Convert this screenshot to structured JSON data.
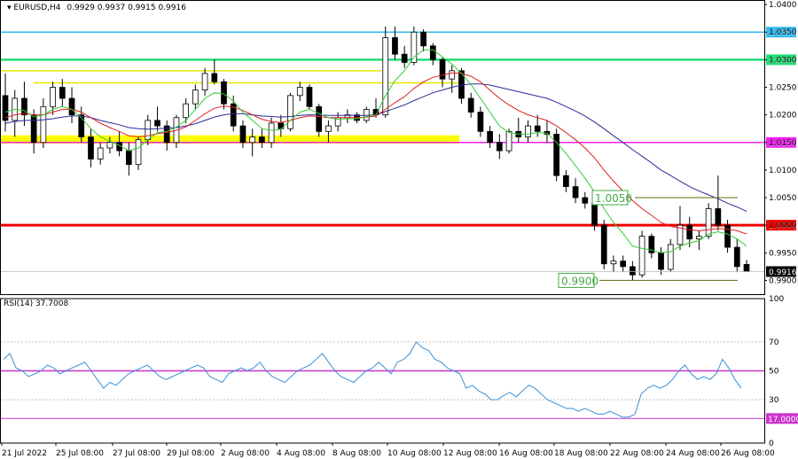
{
  "header": {
    "title": "EURUSD,H4",
    "ohlc": "0.9929 0.9937 0.9915 0.9916",
    "rsi_label": "RSI(14) 37.7008"
  },
  "colors": {
    "bull": "#ffffff",
    "bear": "#000000",
    "ma_fast": "#33cc33",
    "ma_mid": "#e02020",
    "ma_slow": "#2b2b9a",
    "rsi_line": "#3a8fd6",
    "rsi_level50": "#cc33cc",
    "rsi_level17": "#cc33cc",
    "sep": "#000000"
  },
  "chart_data": [
    {
      "type": "candlestick",
      "symbol": "EURUSD",
      "timeframe": "H4",
      "ylim": [
        0.9875,
        1.0405
      ],
      "y_ticks": [
        "1.0400",
        "1.0350",
        "1.0300",
        "1.0250",
        "1.0200",
        "1.0150",
        "1.0100",
        "1.0050",
        "1.0000",
        "0.9950",
        "0.9900"
      ],
      "x_ticks": [
        "21 Jul 2022",
        "25 Jul 08:00",
        "27 Jul 08:00",
        "29 Jul 08:00",
        "2 Aug 08:00",
        "4 Aug 08:00",
        "8 Aug 08:00",
        "10 Aug 08:00",
        "12 Aug 08:00",
        "16 Aug 08:00",
        "18 Aug 08:00",
        "22 Aug 08:00",
        "24 Aug 08:00",
        "26 Aug 08:00"
      ],
      "current_price": "0.9916",
      "levels": [
        {
          "value": 1.035,
          "label": "1.0350",
          "color": "#33bbee",
          "width": 1.5
        },
        {
          "value": 1.03,
          "label": "1.0300",
          "color": "#22dd77",
          "width": 2.5
        },
        {
          "value": 1.015,
          "label": "1.0150",
          "color": "#ee22ee",
          "width": 1.5
        },
        {
          "value": 1.0,
          "label": "1.0000",
          "color": "#ee0000",
          "width": 3
        }
      ],
      "annotations": [
        {
          "text": "1.0050",
          "value": 1.005,
          "color": "#44aa44"
        },
        {
          "text": "0.9900",
          "value": 0.99,
          "color": "#44aa44"
        }
      ],
      "candles": [
        [
          1.0235,
          1.0275,
          1.017,
          1.019
        ],
        [
          1.019,
          1.0245,
          1.016,
          1.023
        ],
        [
          1.023,
          1.026,
          1.018,
          1.02
        ],
        [
          1.02,
          1.021,
          1.013,
          1.015
        ],
        [
          1.015,
          1.023,
          1.014,
          1.0215
        ],
        [
          1.0215,
          1.026,
          1.02,
          1.025
        ],
        [
          1.025,
          1.0265,
          1.0215,
          1.023
        ],
        [
          1.023,
          1.025,
          1.0185,
          1.02
        ],
        [
          1.02,
          1.0215,
          1.015,
          1.016
        ],
        [
          1.016,
          1.0175,
          1.0105,
          1.012
        ],
        [
          1.012,
          1.015,
          1.011,
          1.014
        ],
        [
          1.014,
          1.016,
          1.013,
          1.015
        ],
        [
          1.015,
          1.017,
          1.0125,
          1.0135
        ],
        [
          1.0135,
          1.015,
          1.009,
          1.011
        ],
        [
          1.011,
          1.016,
          1.01,
          1.0155
        ],
        [
          1.0155,
          1.02,
          1.0145,
          1.019
        ],
        [
          1.019,
          1.0215,
          1.017,
          1.018
        ],
        [
          1.018,
          1.019,
          1.0135,
          1.015
        ],
        [
          1.015,
          1.02,
          1.014,
          1.0195
        ],
        [
          1.0195,
          1.023,
          1.0185,
          1.022
        ],
        [
          1.022,
          1.0255,
          1.021,
          1.0245
        ],
        [
          1.0245,
          1.0285,
          1.0235,
          1.0275
        ],
        [
          1.0275,
          1.03,
          1.0255,
          1.026
        ],
        [
          1.026,
          1.0265,
          1.021,
          1.022
        ],
        [
          1.022,
          1.0235,
          1.017,
          1.018
        ],
        [
          1.018,
          1.019,
          1.014,
          1.015
        ],
        [
          1.015,
          1.0175,
          1.0125,
          1.016
        ],
        [
          1.016,
          1.0175,
          1.014,
          1.015
        ],
        [
          1.015,
          1.0195,
          1.014,
          1.0185
        ],
        [
          1.0185,
          1.02,
          1.016,
          1.0175
        ],
        [
          1.0175,
          1.024,
          1.017,
          1.0235
        ],
        [
          1.0235,
          1.026,
          1.0225,
          1.025
        ],
        [
          1.025,
          1.0255,
          1.021,
          1.0215
        ],
        [
          1.0215,
          1.022,
          1.016,
          1.017
        ],
        [
          1.017,
          1.019,
          1.015,
          1.018
        ],
        [
          1.018,
          1.0205,
          1.017,
          1.0195
        ],
        [
          1.0195,
          1.021,
          1.0185,
          1.02
        ],
        [
          1.02,
          1.0205,
          1.0185,
          1.019
        ],
        [
          1.019,
          1.0215,
          1.0185,
          1.021
        ],
        [
          1.021,
          1.023,
          1.0195,
          1.02
        ],
        [
          1.02,
          1.036,
          1.0195,
          1.034
        ],
        [
          1.034,
          1.036,
          1.03,
          1.031
        ],
        [
          1.031,
          1.0325,
          1.0285,
          1.0295
        ],
        [
          1.0295,
          1.036,
          1.029,
          1.035
        ],
        [
          1.035,
          1.0355,
          1.0315,
          1.0325
        ],
        [
          1.0325,
          1.033,
          1.029,
          1.03
        ],
        [
          1.03,
          1.0305,
          1.025,
          1.0265
        ],
        [
          1.0265,
          1.029,
          1.024,
          1.028
        ],
        [
          1.028,
          1.0285,
          1.022,
          1.023
        ],
        [
          1.023,
          1.024,
          1.0195,
          1.0205
        ],
        [
          1.0205,
          1.0215,
          1.016,
          1.017
        ],
        [
          1.017,
          1.018,
          1.014,
          1.015
        ],
        [
          1.015,
          1.0165,
          1.012,
          1.0135
        ],
        [
          1.0135,
          1.0175,
          1.013,
          1.017
        ],
        [
          1.017,
          1.0195,
          1.015,
          1.016
        ],
        [
          1.016,
          1.019,
          1.015,
          1.018
        ],
        [
          1.018,
          1.02,
          1.016,
          1.017
        ],
        [
          1.017,
          1.019,
          1.015,
          1.0165
        ],
        [
          1.0165,
          1.0175,
          1.008,
          1.009
        ],
        [
          1.009,
          1.01,
          1.006,
          1.007
        ],
        [
          1.007,
          1.0085,
          1.004,
          1.005
        ],
        [
          1.005,
          1.006,
          1.003,
          1.004
        ],
        [
          1.004,
          1.005,
          0.999,
          1.0
        ],
        [
          1.0,
          1.001,
          0.992,
          0.993
        ],
        [
          0.993,
          0.9945,
          0.9915,
          0.9935
        ],
        [
          0.9935,
          0.9945,
          0.9915,
          0.9925
        ],
        [
          0.9925,
          0.9935,
          0.99,
          0.991
        ],
        [
          0.991,
          0.999,
          0.9905,
          0.998
        ],
        [
          0.998,
          0.9985,
          0.994,
          0.995
        ],
        [
          0.995,
          0.996,
          0.991,
          0.992
        ],
        [
          0.992,
          0.9975,
          0.9915,
          0.9965
        ],
        [
          0.9965,
          1.0035,
          0.9955,
          1.0
        ],
        [
          1.0,
          1.0015,
          0.996,
          0.9975
        ],
        [
          0.9975,
          0.999,
          0.9955,
          0.998
        ],
        [
          0.998,
          1.004,
          0.9975,
          1.003
        ],
        [
          1.003,
          1.009,
          0.999,
          1.0
        ],
        [
          1.0,
          1.001,
          0.995,
          0.996
        ],
        [
          0.996,
          0.9975,
          0.9915,
          0.9925
        ],
        [
          0.9929,
          0.9937,
          0.9915,
          0.9916
        ]
      ],
      "ma_fast": [
        1.0205,
        1.021,
        1.0208,
        1.0196,
        1.02,
        1.021,
        1.0215,
        1.021,
        1.0195,
        1.0175,
        1.016,
        1.0152,
        1.0145,
        1.0135,
        1.014,
        1.0155,
        1.0168,
        1.017,
        1.0178,
        1.019,
        1.021,
        1.023,
        1.024,
        1.0238,
        1.0225,
        1.0205,
        1.019,
        1.0175,
        1.0172,
        1.0174,
        1.019,
        1.0205,
        1.021,
        1.0203,
        1.0195,
        1.0192,
        1.0193,
        1.0193,
        1.0197,
        1.02,
        1.0235,
        1.0262,
        1.028,
        1.0305,
        1.0318,
        1.0318,
        1.0305,
        1.0292,
        1.0275,
        1.0255,
        1.023,
        1.0205,
        1.018,
        1.0168,
        1.0165,
        1.0165,
        1.0168,
        1.0167,
        1.015,
        1.013,
        1.0108,
        1.0085,
        1.006,
        1.003,
        1.0005,
        0.9985,
        0.9962,
        0.9958,
        0.9955,
        0.995,
        0.9952,
        0.9962,
        0.9968,
        0.9972,
        0.9984,
        0.9988,
        0.9984,
        0.9975,
        0.9962
      ],
      "ma_mid": [
        1.0195,
        1.02,
        1.0203,
        1.02,
        1.02,
        1.0205,
        1.021,
        1.021,
        1.0205,
        1.0195,
        1.0185,
        1.0177,
        1.017,
        1.0162,
        1.016,
        1.0162,
        1.0166,
        1.0168,
        1.0172,
        1.0178,
        1.019,
        1.0202,
        1.0212,
        1.0216,
        1.0214,
        1.0208,
        1.02,
        1.0192,
        1.0188,
        1.0186,
        1.019,
        1.0195,
        1.0198,
        1.0197,
        1.0195,
        1.0195,
        1.0195,
        1.0195,
        1.0196,
        1.0198,
        1.021,
        1.0222,
        1.0233,
        1.0248,
        1.026,
        1.0268,
        1.0272,
        1.0276,
        1.0275,
        1.027,
        1.026,
        1.0245,
        1.023,
        1.0218,
        1.0208,
        1.02,
        1.0195,
        1.019,
        1.018,
        1.0168,
        1.0155,
        1.014,
        1.0122,
        1.01,
        1.008,
        1.0062,
        1.0045,
        1.003,
        1.0018,
        1.0005,
        0.9998,
        0.9995,
        0.9992,
        0.999,
        0.9992,
        0.9994,
        0.9993,
        0.999,
        0.9984
      ],
      "ma_slow": [
        1.0185,
        1.0188,
        1.019,
        1.019,
        1.0191,
        1.0193,
        1.0196,
        1.0198,
        1.0198,
        1.0195,
        1.019,
        1.0186,
        1.0182,
        1.0177,
        1.0175,
        1.0174,
        1.0175,
        1.0176,
        1.0177,
        1.018,
        1.0184,
        1.019,
        1.0196,
        1.02,
        1.0202,
        1.0202,
        1.02,
        1.0198,
        1.0197,
        1.0196,
        1.0197,
        1.0199,
        1.02,
        1.02,
        1.0199,
        1.0199,
        1.0199,
        1.0199,
        1.0199,
        1.02,
        1.0206,
        1.0212,
        1.0218,
        1.0226,
        1.0233,
        1.024,
        1.0245,
        1.025,
        1.0254,
        1.0256,
        1.0256,
        1.0254,
        1.025,
        1.0246,
        1.0242,
        1.0238,
        1.0234,
        1.023,
        1.0223,
        1.0215,
        1.0207,
        1.0198,
        1.0187,
        1.0175,
        1.0162,
        1.015,
        1.0137,
        1.0125,
        1.0113,
        1.01,
        1.009,
        1.008,
        1.007,
        1.0062,
        1.0055,
        1.0048,
        1.004,
        1.0033,
        1.0025
      ]
    },
    {
      "type": "line",
      "name": "RSI(14) 37.7008",
      "ylim": [
        0,
        100
      ],
      "y_ticks": [
        "100",
        "70",
        "50",
        "30",
        "17.0000",
        "0"
      ],
      "levels": [
        50,
        17
      ],
      "values": [
        58,
        62,
        52,
        50,
        46,
        48,
        50,
        54,
        52,
        48,
        50,
        52,
        54,
        56,
        50,
        44,
        38,
        42,
        40,
        44,
        48,
        50,
        52,
        54,
        50,
        46,
        44,
        46,
        48,
        50,
        52,
        54,
        52,
        46,
        44,
        42,
        48,
        50,
        52,
        50,
        52,
        56,
        50,
        46,
        44,
        42,
        46,
        50,
        52,
        54,
        58,
        62,
        56,
        50,
        46,
        44,
        42,
        46,
        50,
        52,
        56,
        52,
        48,
        56,
        58,
        62,
        70,
        66,
        64,
        58,
        56,
        52,
        50,
        48,
        38,
        40,
        36,
        34,
        30,
        30,
        33,
        35,
        32,
        36,
        40,
        38,
        34,
        30,
        28,
        26,
        24,
        24,
        22,
        24,
        22,
        20,
        20,
        22,
        20,
        18,
        18,
        20,
        34,
        38,
        40,
        38,
        40,
        44,
        50,
        54,
        48,
        44,
        46,
        44,
        48,
        58,
        52,
        44,
        38
      ]
    }
  ]
}
